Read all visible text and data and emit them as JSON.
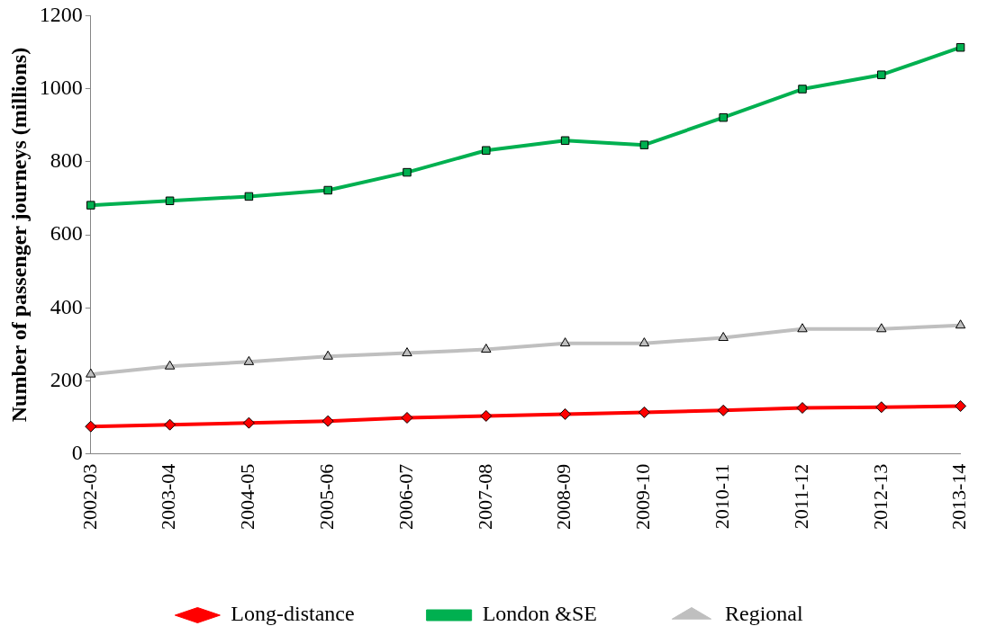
{
  "chart_data": {
    "type": "line",
    "ylabel": "Number of passenger journeys (millions)",
    "categories": [
      "2002-03",
      "2003-04",
      "2004-05",
      "2005-06",
      "2006-07",
      "2007-08",
      "2008-09",
      "2009-10",
      "2010-11",
      "2011-12",
      "2012-13",
      "2013-14"
    ],
    "series": [
      {
        "name": "Long-distance",
        "color": "#ff0000",
        "marker": "diamond",
        "values": [
          75,
          80,
          85,
          90,
          99,
          104,
          109,
          114,
          119,
          126,
          128,
          131
        ]
      },
      {
        "name": "London &SE",
        "color": "#00b050",
        "marker": "square",
        "values": [
          681,
          693,
          705,
          722,
          771,
          831,
          858,
          846,
          921,
          999,
          1038,
          1113
        ]
      },
      {
        "name": "Regional",
        "color": "#bfbfbf",
        "marker": "triangle",
        "values": [
          218,
          240,
          252,
          267,
          276,
          286,
          303,
          303,
          318,
          342,
          342,
          352
        ]
      }
    ],
    "ylim": [
      0,
      1200
    ],
    "yticks": [
      0,
      200,
      400,
      600,
      800,
      1000,
      1200
    ],
    "grid": false,
    "legend": "bottom",
    "line_style": "solid"
  }
}
